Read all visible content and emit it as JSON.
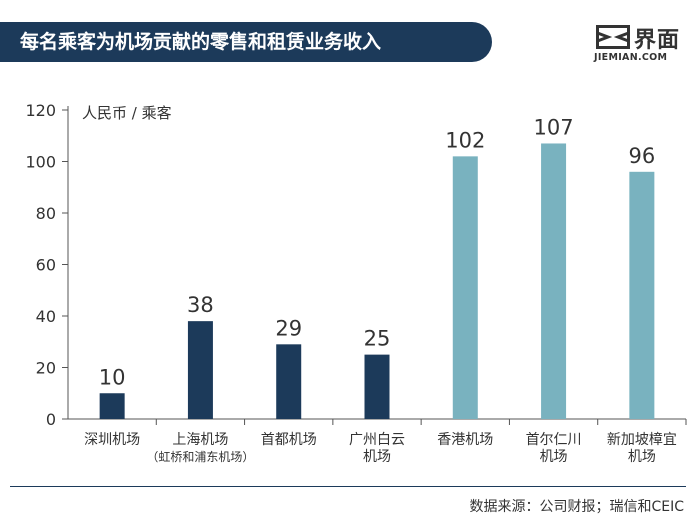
{
  "header": {
    "title": "每名乘客为机场贡献的零售和租赁业务收入",
    "logo_cn": "界面",
    "logo_en": "JIEMIAN.COM",
    "logo_icon": "jiemian-logo-icon"
  },
  "colors": {
    "banner": "#1c3a5a",
    "mainland": "#1c3a5a",
    "overseas": "#79b2bf",
    "axis": "#555555",
    "text": "#333333"
  },
  "chart_data": {
    "type": "bar",
    "title": "每名乘客为机场贡献的零售和租赁业务收入",
    "ylabel": "人民币 / 乘客",
    "xlabel": "",
    "ylim": [
      0,
      120
    ],
    "yticks": [
      0,
      20,
      40,
      60,
      80,
      100,
      120
    ],
    "grid": false,
    "categories": [
      [
        "深圳机场"
      ],
      [
        "上海机场",
        "（虹桥和浦东机场）"
      ],
      [
        "首都机场"
      ],
      [
        "广州白云",
        "机场"
      ],
      [
        "香港机场"
      ],
      [
        "首尔仁川",
        "机场"
      ],
      [
        "新加坡樟宜",
        "机场"
      ]
    ],
    "values": [
      10,
      38,
      29,
      25,
      102,
      107,
      96
    ],
    "value_labels": [
      "10",
      "38",
      "29",
      "25",
      "102",
      "107",
      "96"
    ],
    "bar_colors": [
      "#1c3a5a",
      "#1c3a5a",
      "#1c3a5a",
      "#1c3a5a",
      "#79b2bf",
      "#79b2bf",
      "#79b2bf"
    ]
  },
  "footer": {
    "source": "数据来源：公司财报；瑞信和CEIC"
  }
}
